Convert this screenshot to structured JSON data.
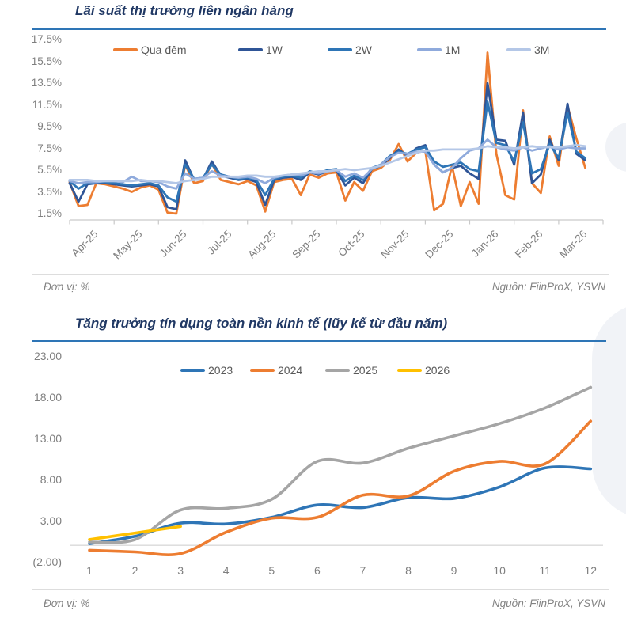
{
  "accent_colors": {
    "title_navy": "#203864",
    "rule_blue": "#2e75b6",
    "axis_gray": "#7f7f7f",
    "legend_text": "#595959"
  },
  "chart_data": [
    {
      "type": "line",
      "title": "Lãi suất thị trường liên ngân hàng",
      "unit_note": "Đơn vị: %",
      "source_note": "Nguồn: FiinProX, YSVN",
      "ylim": [
        1.5,
        17.5
      ],
      "y_tick_labels": [
        "17.5%",
        "15.5%",
        "13.5%",
        "11.5%",
        "9.5%",
        "7.5%",
        "5.5%",
        "3.5%",
        "1.5%"
      ],
      "x_tick_labels": [
        "Apr-25",
        "May-25",
        "Jun-25",
        "Jul-25",
        "Aug-25",
        "Sep-25",
        "Oct-25",
        "Nov-25",
        "Dec-25",
        "Jan-26",
        "Feb-26",
        "Mar-26"
      ],
      "x_axis_note": "daily data, months from Apr-2025",
      "x_start": 0,
      "x_step": 0.2,
      "grid": false,
      "legend_position": "top",
      "series": [
        {
          "name": "Qua đêm",
          "color": "#ED7D31",
          "values": [
            4.4,
            2.2,
            2.3,
            4.3,
            4.2,
            4.0,
            3.8,
            3.5,
            3.9,
            4.1,
            3.7,
            1.6,
            1.5,
            6.0,
            4.3,
            4.5,
            6.1,
            4.6,
            4.4,
            4.2,
            4.5,
            4.1,
            1.7,
            4.4,
            4.6,
            4.7,
            3.2,
            5.1,
            4.8,
            5.2,
            5.3,
            2.7,
            4.4,
            3.6,
            5.4,
            5.7,
            6.4,
            7.9,
            6.3,
            7.1,
            7.3,
            1.8,
            2.4,
            5.9,
            2.2,
            4.4,
            2.4,
            16.3,
            7.0,
            3.2,
            2.8,
            11.0,
            4.3,
            3.4,
            8.6,
            5.9,
            11.4,
            8.4,
            5.7
          ]
        },
        {
          "name": "1W",
          "color": "#2F5597",
          "values": [
            4.3,
            2.6,
            4.2,
            4.3,
            4.3,
            4.2,
            4.1,
            4.0,
            4.1,
            4.2,
            4.0,
            2.1,
            1.9,
            6.4,
            4.6,
            4.7,
            6.3,
            5.0,
            4.8,
            4.6,
            4.7,
            4.4,
            2.3,
            4.6,
            4.8,
            4.9,
            4.6,
            5.3,
            5.1,
            5.4,
            5.5,
            4.1,
            4.8,
            4.3,
            5.6,
            5.9,
            6.6,
            7.4,
            6.8,
            7.5,
            7.8,
            6.0,
            5.3,
            5.7,
            5.9,
            5.2,
            4.7,
            13.5,
            8.3,
            8.2,
            6.0,
            10.8,
            4.3,
            5.1,
            8.3,
            6.4,
            11.6,
            7.0,
            6.4
          ]
        },
        {
          "name": "2W",
          "color": "#2E75B6",
          "values": [
            4.5,
            3.8,
            4.3,
            4.4,
            4.4,
            4.3,
            4.2,
            4.1,
            4.2,
            4.3,
            4.1,
            3.0,
            2.6,
            6.0,
            4.7,
            4.8,
            6.0,
            5.1,
            4.9,
            4.7,
            4.8,
            4.6,
            3.2,
            4.7,
            4.9,
            5.0,
            4.8,
            5.4,
            5.2,
            5.5,
            5.6,
            4.5,
            5.0,
            4.6,
            5.7,
            6.0,
            6.8,
            7.2,
            7.0,
            7.4,
            7.6,
            6.3,
            5.8,
            6.0,
            6.2,
            5.6,
            5.4,
            11.8,
            8.0,
            7.8,
            6.3,
            9.9,
            5.2,
            5.6,
            7.9,
            6.6,
            10.8,
            7.2,
            6.6
          ]
        },
        {
          "name": "1M",
          "color": "#8FAADC",
          "values": [
            4.5,
            4.3,
            4.4,
            4.4,
            4.5,
            4.5,
            4.4,
            4.9,
            4.5,
            4.5,
            4.4,
            4.0,
            3.8,
            5.2,
            4.7,
            4.8,
            5.4,
            5.0,
            4.9,
            4.8,
            4.9,
            4.7,
            4.3,
            4.8,
            5.0,
            5.1,
            5.0,
            5.3,
            5.2,
            5.4,
            5.5,
            4.9,
            5.2,
            4.8,
            5.6,
            6.0,
            6.7,
            7.1,
            7.0,
            7.2,
            7.2,
            6.0,
            5.3,
            5.7,
            6.6,
            7.3,
            7.5,
            8.3,
            7.6,
            7.4,
            7.3,
            7.6,
            7.3,
            7.5,
            7.7,
            7.4,
            7.6,
            7.5,
            7.5
          ]
        },
        {
          "name": "3M",
          "color": "#B4C7E7",
          "values": [
            4.6,
            4.6,
            4.6,
            4.5,
            4.5,
            4.5,
            4.5,
            4.5,
            4.6,
            4.5,
            4.5,
            4.4,
            4.3,
            4.5,
            4.6,
            4.7,
            4.9,
            4.9,
            4.9,
            4.9,
            5.0,
            5.0,
            4.9,
            4.9,
            5.0,
            5.1,
            5.2,
            5.3,
            5.4,
            5.4,
            5.5,
            5.6,
            5.5,
            5.6,
            5.7,
            5.9,
            6.2,
            6.5,
            6.8,
            7.1,
            7.3,
            7.3,
            7.4,
            7.4,
            7.4,
            7.4,
            7.5,
            7.7,
            7.6,
            7.6,
            7.5,
            7.6,
            7.7,
            7.6,
            7.6,
            7.6,
            7.7,
            7.8,
            7.7
          ]
        }
      ]
    },
    {
      "type": "line",
      "title": "Tăng trưởng tín dụng toàn nền kinh tế (lũy kế từ đầu năm)",
      "unit_note": "Đơn vị: %",
      "source_note": "Nguồn: FiinProX, YSVN",
      "ylim": [
        -2,
        23
      ],
      "y_tick_values": [
        23,
        18,
        13,
        8,
        3,
        -2
      ],
      "y_tick_labels": [
        "23.00",
        "18.00",
        "13.00",
        "8.00",
        "3.00",
        "(2.00)"
      ],
      "x_tick_labels": [
        "1",
        "2",
        "3",
        "4",
        "5",
        "6",
        "7",
        "8",
        "9",
        "10",
        "11",
        "12"
      ],
      "x_axis_note": "month of year",
      "grid": false,
      "legend_position": "top",
      "series": [
        {
          "name": "2023",
          "color": "#2E75B6",
          "values": [
            0.2,
            1.1,
            2.7,
            2.6,
            3.4,
            4.9,
            4.6,
            5.8,
            5.7,
            7.1,
            9.4,
            9.3
          ]
        },
        {
          "name": "2024",
          "color": "#ED7D31",
          "values": [
            -0.6,
            -0.8,
            -1.0,
            1.6,
            3.3,
            3.4,
            6.1,
            6.0,
            9.0,
            10.2,
            9.9,
            15.1
          ]
        },
        {
          "name": "2025",
          "color": "#A5A5A5",
          "values": [
            0.4,
            0.7,
            4.3,
            4.5,
            5.6,
            10.2,
            10.0,
            11.8,
            13.3,
            14.8,
            16.7,
            19.2
          ]
        },
        {
          "name": "2026",
          "color": "#FFC000",
          "values": [
            0.7,
            1.5,
            2.3
          ]
        }
      ]
    }
  ]
}
